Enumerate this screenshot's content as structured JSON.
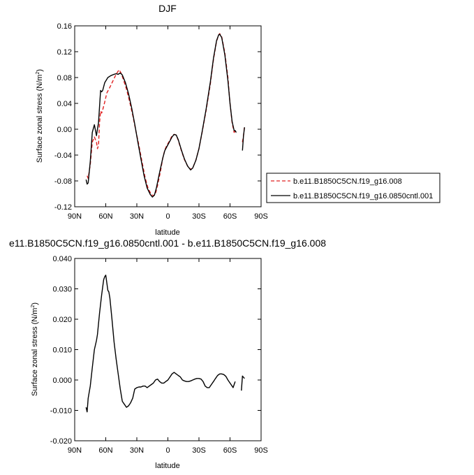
{
  "chart_data": [
    {
      "type": "line",
      "title": "DJF",
      "xlabel": "latitude",
      "ylabel": "Surface zonal stress (N/m²)",
      "ylabel_main": "Surface zonal stress (N/m",
      "ylabel_sup": "2",
      "ylabel_tail": ")",
      "xlim": [
        90,
        -90
      ],
      "ylim": [
        -0.12,
        0.16
      ],
      "xticks": [
        90,
        60,
        30,
        0,
        -30,
        -60,
        -90
      ],
      "xtick_labels": [
        "90N",
        "60N",
        "30N",
        "0",
        "30S",
        "60S",
        "90S"
      ],
      "yticks": [
        -0.12,
        -0.08,
        -0.04,
        0.0,
        0.04,
        0.08,
        0.12,
        0.16
      ],
      "ytick_labels": [
        "-0.12",
        "-0.08",
        "-0.04",
        "0.00",
        "0.04",
        "0.08",
        "0.12",
        "0.16"
      ],
      "legend_position": "right",
      "series": [
        {
          "name": "b.e11.B1850C5CN.f19_g16.008",
          "color": "#e02020",
          "dash": "dashed",
          "segments": [
            [
              [
                78,
                -0.072
              ],
              [
                77,
                -0.076
              ],
              [
                75,
                -0.055
              ],
              [
                73,
                -0.02
              ],
              [
                71,
                -0.012
              ],
              [
                69,
                -0.02
              ],
              [
                68,
                -0.03
              ],
              [
                67,
                -0.025
              ],
              [
                66,
                0.01
              ],
              [
                65,
                0.028
              ],
              [
                64,
                0.025
              ],
              [
                63,
                0.03
              ],
              [
                61,
                0.042
              ],
              [
                59,
                0.056
              ],
              [
                56,
                0.065
              ],
              [
                53,
                0.075
              ],
              [
                50,
                0.085
              ],
              [
                48,
                0.09
              ],
              [
                47,
                0.092
              ],
              [
                45,
                0.086
              ],
              [
                43,
                0.077
              ],
              [
                40,
                0.062
              ],
              [
                37,
                0.043
              ],
              [
                34,
                0.022
              ],
              [
                31,
                -0.002
              ],
              [
                28,
                -0.025
              ],
              [
                25,
                -0.05
              ],
              [
                22,
                -0.075
              ],
              [
                19,
                -0.092
              ],
              [
                16,
                -0.101
              ],
              [
                14,
                -0.103
              ],
              [
                12,
                -0.1
              ],
              [
                10,
                -0.087
              ],
              [
                7,
                -0.064
              ],
              [
                5,
                -0.045
              ],
              [
                3,
                -0.032
              ],
              [
                1,
                -0.025
              ],
              [
                -2,
                -0.017
              ],
              [
                -4,
                -0.01
              ],
              [
                -6,
                -0.008
              ],
              [
                -8,
                -0.009
              ],
              [
                -10,
                -0.017
              ],
              [
                -13,
                -0.033
              ],
              [
                -16,
                -0.047
              ],
              [
                -19,
                -0.057
              ],
              [
                -22,
                -0.062
              ],
              [
                -24,
                -0.06
              ],
              [
                -27,
                -0.048
              ],
              [
                -30,
                -0.03
              ],
              [
                -33,
                -0.005
              ],
              [
                -37,
                0.03
              ],
              [
                -41,
                0.07
              ],
              [
                -44,
                0.108
              ],
              [
                -47,
                0.136
              ],
              [
                -49,
                0.146
              ],
              [
                -50,
                0.148
              ],
              [
                -52,
                0.143
              ],
              [
                -55,
                0.118
              ],
              [
                -58,
                0.08
              ],
              [
                -60,
                0.04
              ],
              [
                -62,
                0.01
              ],
              [
                -64,
                -0.005
              ],
              [
                -65,
                -0.003
              ],
              [
                -66,
                -0.006
              ]
            ],
            [
              [
                -72,
                -0.02
              ],
              [
                -73,
                -0.01
              ],
              [
                -74,
                0.005
              ]
            ]
          ]
        },
        {
          "name": "b.e11.B1850C5CN.f19_g16.0850cntl.001",
          "color": "#000000",
          "dash": "solid",
          "segments": [
            [
              [
                79,
                -0.078
              ],
              [
                78,
                -0.085
              ],
              [
                77,
                -0.083
              ],
              [
                75,
                -0.05
              ],
              [
                73,
                -0.005
              ],
              [
                71,
                0.007
              ],
              [
                69,
                -0.01
              ],
              [
                68,
                0.0
              ],
              [
                67,
                0.01
              ],
              [
                66,
                0.035
              ],
              [
                65,
                0.06
              ],
              [
                64,
                0.058
              ],
              [
                63,
                0.06
              ],
              [
                61,
                0.072
              ],
              [
                58,
                0.08
              ],
              [
                55,
                0.083
              ],
              [
                52,
                0.085
              ],
              [
                50,
                0.086
              ],
              [
                48,
                0.085
              ],
              [
                46,
                0.087
              ],
              [
                44,
                0.084
              ],
              [
                41,
                0.072
              ],
              [
                38,
                0.055
              ],
              [
                35,
                0.033
              ],
              [
                32,
                0.008
              ],
              [
                29,
                -0.02
              ],
              [
                26,
                -0.046
              ],
              [
                23,
                -0.072
              ],
              [
                20,
                -0.091
              ],
              [
                17,
                -0.101
              ],
              [
                15,
                -0.105
              ],
              [
                13,
                -0.102
              ],
              [
                11,
                -0.09
              ],
              [
                8,
                -0.067
              ],
              [
                5,
                -0.045
              ],
              [
                3,
                -0.033
              ],
              [
                1,
                -0.027
              ],
              [
                -2,
                -0.018
              ],
              [
                -4,
                -0.012
              ],
              [
                -6,
                -0.008
              ],
              [
                -8,
                -0.009
              ],
              [
                -10,
                -0.016
              ],
              [
                -13,
                -0.032
              ],
              [
                -16,
                -0.046
              ],
              [
                -19,
                -0.057
              ],
              [
                -22,
                -0.063
              ],
              [
                -24,
                -0.06
              ],
              [
                -27,
                -0.048
              ],
              [
                -30,
                -0.03
              ],
              [
                -33,
                -0.004
              ],
              [
                -37,
                0.032
              ],
              [
                -41,
                0.073
              ],
              [
                -44,
                0.11
              ],
              [
                -47,
                0.137
              ],
              [
                -49,
                0.146
              ],
              [
                -50,
                0.147
              ],
              [
                -52,
                0.142
              ],
              [
                -55,
                0.115
              ],
              [
                -58,
                0.075
              ],
              [
                -60,
                0.04
              ],
              [
                -62,
                0.012
              ],
              [
                -64,
                -0.002
              ],
              [
                -65,
                -0.002
              ],
              [
                -66,
                -0.005
              ]
            ],
            [
              [
                -72,
                -0.033
              ],
              [
                -73,
                -0.01
              ],
              [
                -74,
                0.003
              ]
            ]
          ]
        }
      ]
    },
    {
      "type": "line",
      "title": "e11.B1850C5CN.f19_g16.0850cntl.001 - b.e11.B1850C5CN.f19_g16.008",
      "xlabel": "latitude",
      "ylabel": "Surface zonal stress (N/m²)",
      "ylabel_main": "Surface zonal stress (N/m",
      "ylabel_sup": "2",
      "ylabel_tail": ")",
      "xlim": [
        90,
        -90
      ],
      "ylim": [
        -0.02,
        0.04
      ],
      "xticks": [
        90,
        60,
        30,
        0,
        -30,
        -60,
        -90
      ],
      "xtick_labels": [
        "90N",
        "60N",
        "30N",
        "0",
        "30S",
        "60S",
        "90S"
      ],
      "yticks": [
        -0.02,
        -0.01,
        0.0,
        0.01,
        0.02,
        0.03,
        0.04
      ],
      "ytick_labels": [
        "-0.020",
        "-0.010",
        "0.000",
        "0.010",
        "0.020",
        "0.030",
        "0.040"
      ],
      "series": [
        {
          "name": "",
          "color": "#000000",
          "dash": "solid",
          "segments": [
            [
              [
                79,
                -0.009
              ],
              [
                78,
                -0.0105
              ],
              [
                77,
                -0.006
              ],
              [
                75,
                -0.002
              ],
              [
                73,
                0.004
              ],
              [
                71,
                0.01
              ],
              [
                69,
                0.013
              ],
              [
                68,
                0.015
              ],
              [
                66,
                0.022
              ],
              [
                64,
                0.028
              ],
              [
                62,
                0.033
              ],
              [
                61,
                0.034
              ],
              [
                60,
                0.0345
              ],
              [
                59,
                0.032
              ],
              [
                58,
                0.0295
              ],
              [
                57,
                0.029
              ],
              [
                56,
                0.027
              ],
              [
                54,
                0.02
              ],
              [
                52,
                0.0125
              ],
              [
                50,
                0.007
              ],
              [
                48,
                0.002
              ],
              [
                46,
                -0.003
              ],
              [
                44,
                -0.007
              ],
              [
                42,
                -0.008
              ],
              [
                40,
                -0.009
              ],
              [
                38,
                -0.0085
              ],
              [
                36,
                -0.0075
              ],
              [
                34,
                -0.006
              ],
              [
                32,
                -0.003
              ],
              [
                30,
                -0.0025
              ],
              [
                28,
                -0.0023
              ],
              [
                26,
                -0.0023
              ],
              [
                24,
                -0.002
              ],
              [
                22,
                -0.002
              ],
              [
                20,
                -0.0025
              ],
              [
                18,
                -0.002
              ],
              [
                16,
                -0.0015
              ],
              [
                14,
                -0.001
              ],
              [
                12,
                0.0
              ],
              [
                10,
                0.0003
              ],
              [
                8,
                -0.0005
              ],
              [
                6,
                -0.001
              ],
              [
                4,
                -0.001
              ],
              [
                2,
                -0.0005
              ],
              [
                0,
                0.0
              ],
              [
                -2,
                0.001
              ],
              [
                -4,
                0.002
              ],
              [
                -6,
                0.0025
              ],
              [
                -8,
                0.002
              ],
              [
                -10,
                0.0015
              ],
              [
                -12,
                0.001
              ],
              [
                -14,
                0.0
              ],
              [
                -16,
                -0.0003
              ],
              [
                -18,
                -0.0005
              ],
              [
                -20,
                -0.0005
              ],
              [
                -22,
                -0.0003
              ],
              [
                -24,
                0.0
              ],
              [
                -26,
                0.0003
              ],
              [
                -28,
                0.0005
              ],
              [
                -30,
                0.0005
              ],
              [
                -32,
                0.0003
              ],
              [
                -34,
                -0.0005
              ],
              [
                -36,
                -0.002
              ],
              [
                -38,
                -0.0025
              ],
              [
                -40,
                -0.0025
              ],
              [
                -42,
                -0.0015
              ],
              [
                -44,
                -0.0005
              ],
              [
                -46,
                0.0005
              ],
              [
                -48,
                0.0015
              ],
              [
                -50,
                0.002
              ],
              [
                -52,
                0.002
              ],
              [
                -54,
                0.0018
              ],
              [
                -56,
                0.0012
              ],
              [
                -58,
                0.0
              ],
              [
                -60,
                -0.001
              ],
              [
                -62,
                -0.002
              ],
              [
                -63,
                -0.0025
              ],
              [
                -64,
                -0.0015
              ],
              [
                -65,
                -0.0005
              ]
            ],
            [
              [
                -71,
                -0.0035
              ],
              [
                -72,
                0.0013
              ],
              [
                -74,
                0.0005
              ]
            ]
          ]
        }
      ]
    }
  ]
}
